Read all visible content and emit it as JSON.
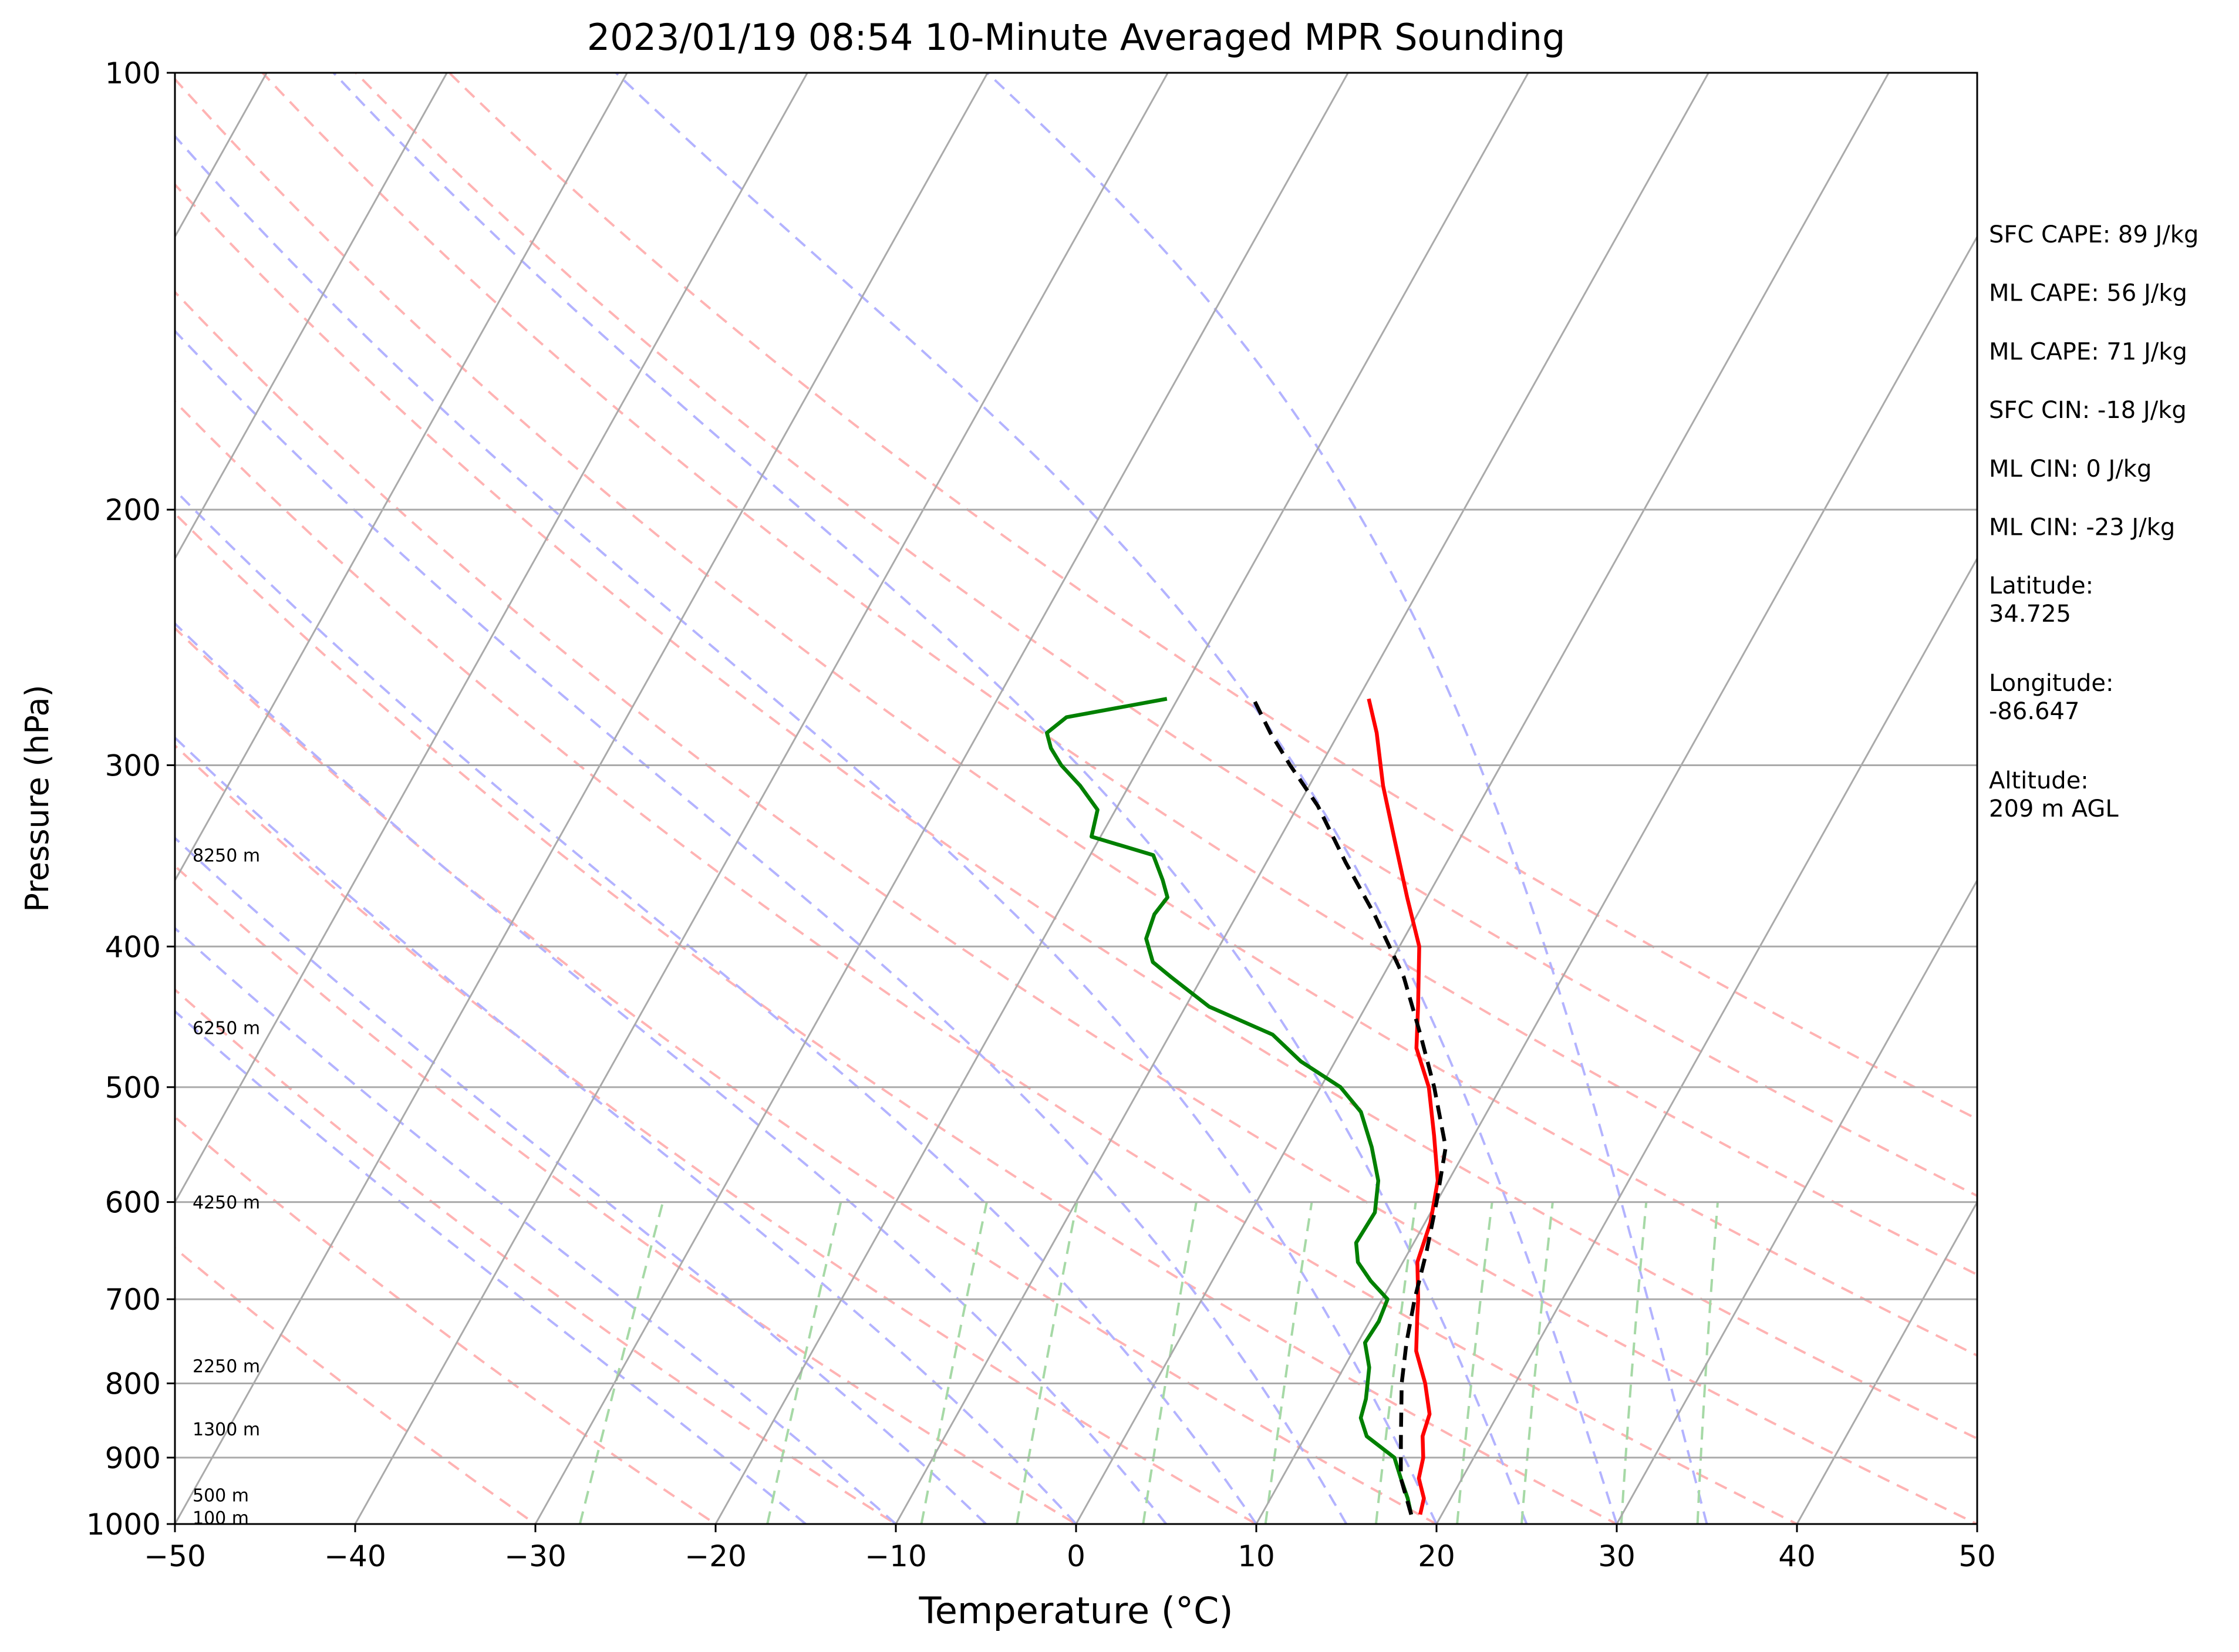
{
  "chart_data": {
    "type": "line",
    "title": "2023/01/19 08:54 10-Minute Averaged MPR Sounding",
    "xlabel": "Temperature (°C)",
    "ylabel": "Pressure (hPa)",
    "xlim": [
      -50,
      50
    ],
    "ylim": [
      1000,
      100
    ],
    "y_scale": "log",
    "skew_t": true,
    "grid": true,
    "x_ticks": [
      -50,
      -40,
      -30,
      -20,
      -10,
      0,
      10,
      20,
      30,
      40,
      50
    ],
    "x_tick_labels": [
      "−50",
      "−40",
      "−30",
      "−20",
      "−10",
      "0",
      "10",
      "20",
      "30",
      "40",
      "50"
    ],
    "y_ticks": [
      1000,
      900,
      800,
      700,
      600,
      500,
      400,
      300,
      200,
      100
    ],
    "y_tick_labels": [
      "1000",
      "900",
      "800",
      "700",
      "600",
      "500",
      "400",
      "300",
      "200",
      "100"
    ],
    "height_labels": [
      {
        "p": 990,
        "label": "100 m"
      },
      {
        "p": 955,
        "label": "500 m"
      },
      {
        "p": 860,
        "label": "1300 m"
      },
      {
        "p": 778,
        "label": "2250 m"
      },
      {
        "p": 600,
        "label": "4250 m"
      },
      {
        "p": 455,
        "label": "6250 m"
      },
      {
        "p": 346,
        "label": "8250 m"
      }
    ],
    "series": [
      {
        "role": "temperature",
        "color": "#ff0000",
        "points": [
          [
            985,
            18.8
          ],
          [
            960,
            18.5
          ],
          [
            930,
            17.6
          ],
          [
            900,
            17.2
          ],
          [
            870,
            16.5
          ],
          [
            840,
            16.2
          ],
          [
            800,
            15.0
          ],
          [
            760,
            13.5
          ],
          [
            720,
            12.5
          ],
          [
            700,
            12.0
          ],
          [
            660,
            10.8
          ],
          [
            620,
            10.3
          ],
          [
            580,
            9.4
          ],
          [
            540,
            7.8
          ],
          [
            500,
            6.0
          ],
          [
            470,
            4.1
          ],
          [
            440,
            2.9
          ],
          [
            400,
            1.1
          ],
          [
            370,
            -1.1
          ],
          [
            340,
            -3.4
          ],
          [
            310,
            -5.9
          ],
          [
            285,
            -7.9
          ],
          [
            270,
            -9.4
          ]
        ]
      },
      {
        "role": "dewpoint",
        "color": "#008000",
        "points": [
          [
            985,
            18.3
          ],
          [
            960,
            17.6
          ],
          [
            930,
            16.6
          ],
          [
            900,
            15.6
          ],
          [
            870,
            13.4
          ],
          [
            845,
            12.5
          ],
          [
            820,
            12.2
          ],
          [
            780,
            11.4
          ],
          [
            750,
            10.4
          ],
          [
            725,
            10.5
          ],
          [
            700,
            10.3
          ],
          [
            680,
            8.8
          ],
          [
            660,
            7.5
          ],
          [
            640,
            6.8
          ],
          [
            610,
            6.9
          ],
          [
            580,
            6.1
          ],
          [
            550,
            4.7
          ],
          [
            520,
            3.0
          ],
          [
            500,
            1.1
          ],
          [
            480,
            -1.9
          ],
          [
            460,
            -4.3
          ],
          [
            440,
            -8.7
          ],
          [
            420,
            -11.7
          ],
          [
            410,
            -13.2
          ],
          [
            395,
            -14.3
          ],
          [
            380,
            -14.6
          ],
          [
            370,
            -14.4
          ],
          [
            360,
            -15.2
          ],
          [
            346,
            -16.5
          ],
          [
            336,
            -20.5
          ],
          [
            322,
            -21.0
          ],
          [
            310,
            -22.7
          ],
          [
            300,
            -24.4
          ],
          [
            292,
            -25.5
          ],
          [
            285,
            -26.2
          ],
          [
            278,
            -25.6
          ],
          [
            270,
            -20.6
          ]
        ]
      },
      {
        "role": "parcel",
        "color": "#000000",
        "points": [
          [
            985,
            18.3
          ],
          [
            930,
            16.6
          ],
          [
            870,
            15.3
          ],
          [
            800,
            13.7
          ],
          [
            750,
            12.7
          ],
          [
            700,
            11.8
          ],
          [
            650,
            11.0
          ],
          [
            600,
            10.0
          ],
          [
            550,
            8.8
          ],
          [
            500,
            6.3
          ],
          [
            460,
            3.9
          ],
          [
            420,
            1.2
          ],
          [
            380,
            -2.4
          ],
          [
            350,
            -5.6
          ],
          [
            320,
            -8.9
          ],
          [
            300,
            -11.7
          ],
          [
            285,
            -13.8
          ],
          [
            270,
            -15.8
          ]
        ]
      }
    ],
    "annotations": [
      "SFC CAPE: 89 J/kg",
      "ML CAPE: 56 J/kg",
      "ML CAPE: 71 J/kg",
      "SFC CIN: -18 J/kg",
      "ML CIN: 0 J/kg",
      "ML CIN: -23 J/kg",
      "Latitude:\n34.725",
      "Longitude:\n-86.647",
      "Altitude:\n209 m AGL"
    ],
    "colors": {
      "isotherm": "#aaaaaa",
      "dry_adiabat": "#ffb3b3",
      "moist_adiabat": "#b3b3ff",
      "mixing_ratio": "#a6d9a6"
    },
    "dry_adiabats_theta_c": [
      -30,
      -20,
      -10,
      0,
      10,
      20,
      30,
      40,
      50,
      60,
      70,
      80,
      90,
      100
    ],
    "moist_adiabats_t0_c": [
      -15,
      -10,
      -5,
      0,
      5,
      10,
      15,
      20,
      25,
      30,
      35
    ],
    "mixing_ratios_gkg": [
      0.4,
      1,
      2,
      3,
      5,
      8,
      12,
      16,
      20,
      28,
      36
    ]
  }
}
